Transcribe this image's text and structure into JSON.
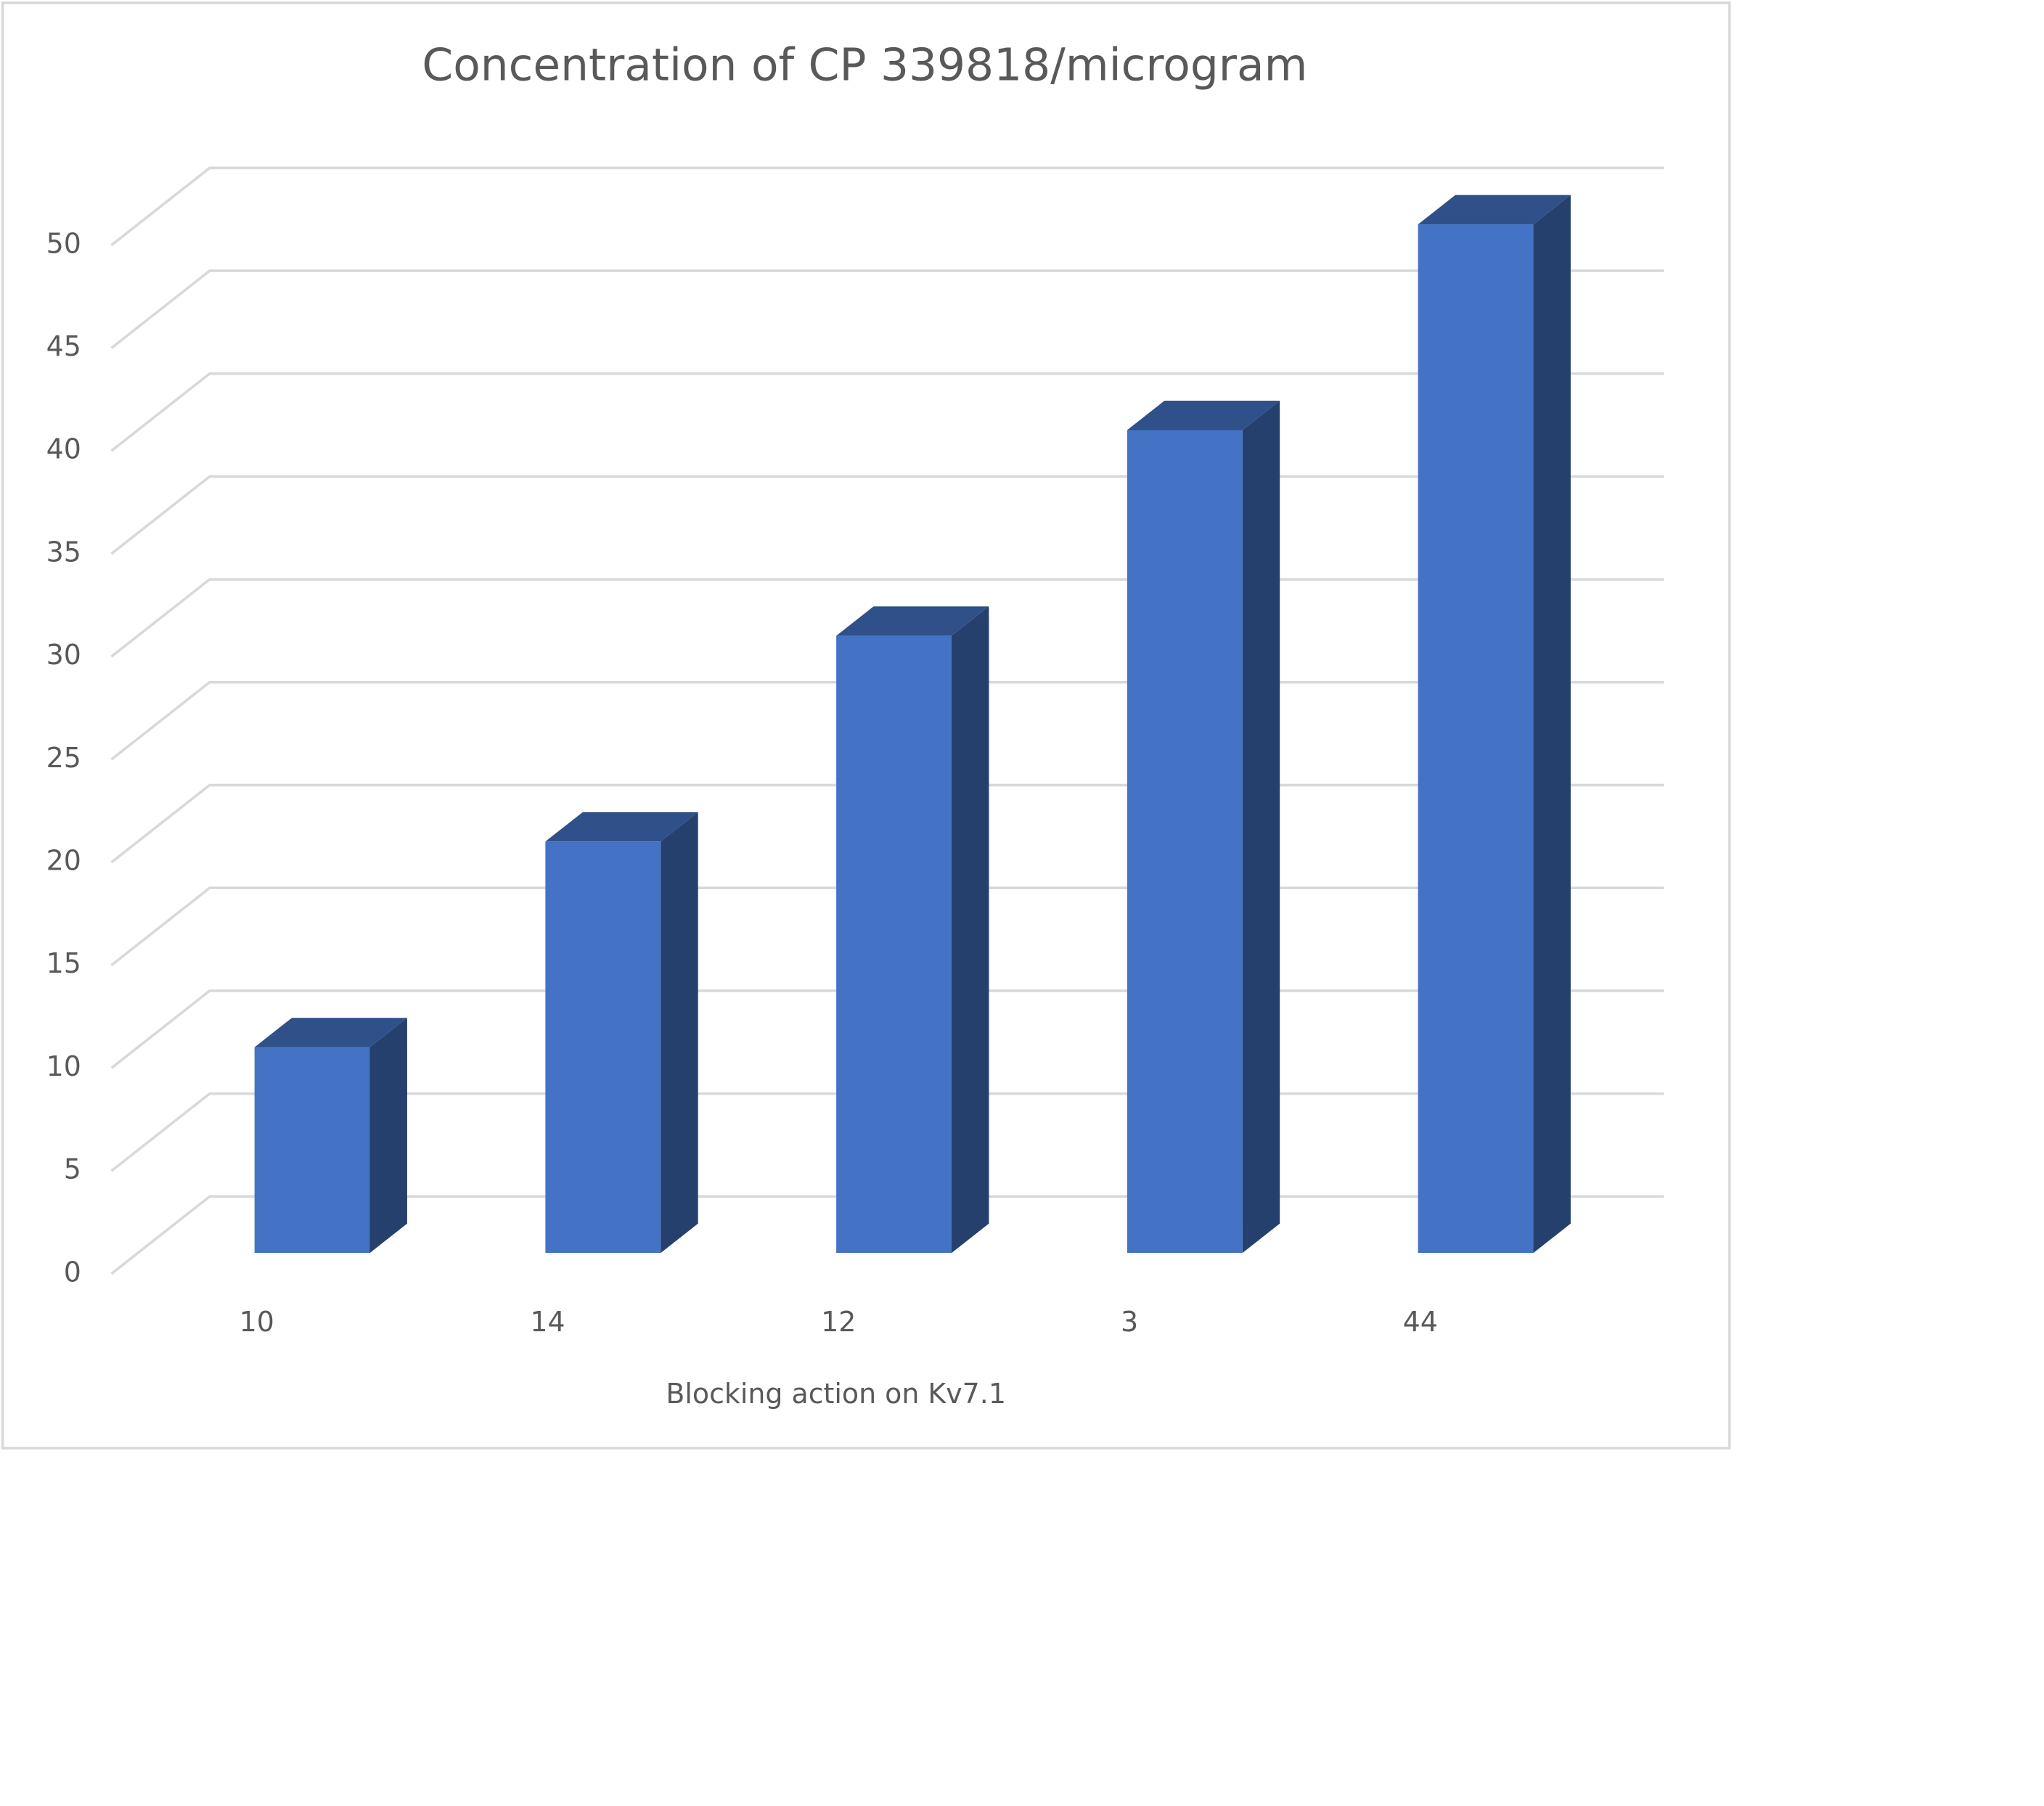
{
  "chart_data": {
    "type": "bar3d",
    "title": "Concentration of CP 339818/microgram",
    "x_label": "Blocking action on Kv7.1",
    "categories": [
      "10",
      "14",
      "12",
      "3",
      "44"
    ],
    "values": [
      10,
      20,
      30,
      40,
      50
    ],
    "color": "#4472c4",
    "ylim": [
      0,
      50
    ],
    "yticks": [
      0,
      5,
      10,
      15,
      20,
      25,
      30,
      35,
      40,
      45,
      50
    ],
    "grid": true
  }
}
